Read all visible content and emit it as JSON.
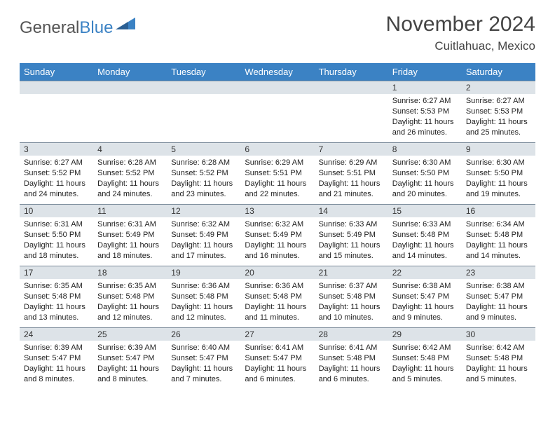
{
  "logo": {
    "textGray": "General",
    "textBlue": "Blue"
  },
  "title": "November 2024",
  "location": "Cuitlahuac, Mexico",
  "colors": {
    "headerBg": "#3b82c4",
    "headerText": "#ffffff",
    "dayNumBg": "#dde3e8",
    "gridLine": "#7a8a99",
    "textBody": "#222222",
    "logoGray": "#555555",
    "logoBlue": "#3b82c4",
    "pageBg": "#ffffff"
  },
  "dayHeaders": [
    "Sunday",
    "Monday",
    "Tuesday",
    "Wednesday",
    "Thursday",
    "Friday",
    "Saturday"
  ],
  "weeks": [
    [
      null,
      null,
      null,
      null,
      null,
      {
        "n": "1",
        "sr": "6:27 AM",
        "ss": "5:53 PM",
        "dl": "11 hours and 26 minutes."
      },
      {
        "n": "2",
        "sr": "6:27 AM",
        "ss": "5:53 PM",
        "dl": "11 hours and 25 minutes."
      }
    ],
    [
      {
        "n": "3",
        "sr": "6:27 AM",
        "ss": "5:52 PM",
        "dl": "11 hours and 24 minutes."
      },
      {
        "n": "4",
        "sr": "6:28 AM",
        "ss": "5:52 PM",
        "dl": "11 hours and 24 minutes."
      },
      {
        "n": "5",
        "sr": "6:28 AM",
        "ss": "5:52 PM",
        "dl": "11 hours and 23 minutes."
      },
      {
        "n": "6",
        "sr": "6:29 AM",
        "ss": "5:51 PM",
        "dl": "11 hours and 22 minutes."
      },
      {
        "n": "7",
        "sr": "6:29 AM",
        "ss": "5:51 PM",
        "dl": "11 hours and 21 minutes."
      },
      {
        "n": "8",
        "sr": "6:30 AM",
        "ss": "5:50 PM",
        "dl": "11 hours and 20 minutes."
      },
      {
        "n": "9",
        "sr": "6:30 AM",
        "ss": "5:50 PM",
        "dl": "11 hours and 19 minutes."
      }
    ],
    [
      {
        "n": "10",
        "sr": "6:31 AM",
        "ss": "5:50 PM",
        "dl": "11 hours and 18 minutes."
      },
      {
        "n": "11",
        "sr": "6:31 AM",
        "ss": "5:49 PM",
        "dl": "11 hours and 18 minutes."
      },
      {
        "n": "12",
        "sr": "6:32 AM",
        "ss": "5:49 PM",
        "dl": "11 hours and 17 minutes."
      },
      {
        "n": "13",
        "sr": "6:32 AM",
        "ss": "5:49 PM",
        "dl": "11 hours and 16 minutes."
      },
      {
        "n": "14",
        "sr": "6:33 AM",
        "ss": "5:49 PM",
        "dl": "11 hours and 15 minutes."
      },
      {
        "n": "15",
        "sr": "6:33 AM",
        "ss": "5:48 PM",
        "dl": "11 hours and 14 minutes."
      },
      {
        "n": "16",
        "sr": "6:34 AM",
        "ss": "5:48 PM",
        "dl": "11 hours and 14 minutes."
      }
    ],
    [
      {
        "n": "17",
        "sr": "6:35 AM",
        "ss": "5:48 PM",
        "dl": "11 hours and 13 minutes."
      },
      {
        "n": "18",
        "sr": "6:35 AM",
        "ss": "5:48 PM",
        "dl": "11 hours and 12 minutes."
      },
      {
        "n": "19",
        "sr": "6:36 AM",
        "ss": "5:48 PM",
        "dl": "11 hours and 12 minutes."
      },
      {
        "n": "20",
        "sr": "6:36 AM",
        "ss": "5:48 PM",
        "dl": "11 hours and 11 minutes."
      },
      {
        "n": "21",
        "sr": "6:37 AM",
        "ss": "5:48 PM",
        "dl": "11 hours and 10 minutes."
      },
      {
        "n": "22",
        "sr": "6:38 AM",
        "ss": "5:47 PM",
        "dl": "11 hours and 9 minutes."
      },
      {
        "n": "23",
        "sr": "6:38 AM",
        "ss": "5:47 PM",
        "dl": "11 hours and 9 minutes."
      }
    ],
    [
      {
        "n": "24",
        "sr": "6:39 AM",
        "ss": "5:47 PM",
        "dl": "11 hours and 8 minutes."
      },
      {
        "n": "25",
        "sr": "6:39 AM",
        "ss": "5:47 PM",
        "dl": "11 hours and 8 minutes."
      },
      {
        "n": "26",
        "sr": "6:40 AM",
        "ss": "5:47 PM",
        "dl": "11 hours and 7 minutes."
      },
      {
        "n": "27",
        "sr": "6:41 AM",
        "ss": "5:47 PM",
        "dl": "11 hours and 6 minutes."
      },
      {
        "n": "28",
        "sr": "6:41 AM",
        "ss": "5:48 PM",
        "dl": "11 hours and 6 minutes."
      },
      {
        "n": "29",
        "sr": "6:42 AM",
        "ss": "5:48 PM",
        "dl": "11 hours and 5 minutes."
      },
      {
        "n": "30",
        "sr": "6:42 AM",
        "ss": "5:48 PM",
        "dl": "11 hours and 5 minutes."
      }
    ]
  ],
  "labels": {
    "sunrisePrefix": "Sunrise: ",
    "sunsetPrefix": "Sunset: ",
    "daylightPrefix": "Daylight: "
  }
}
